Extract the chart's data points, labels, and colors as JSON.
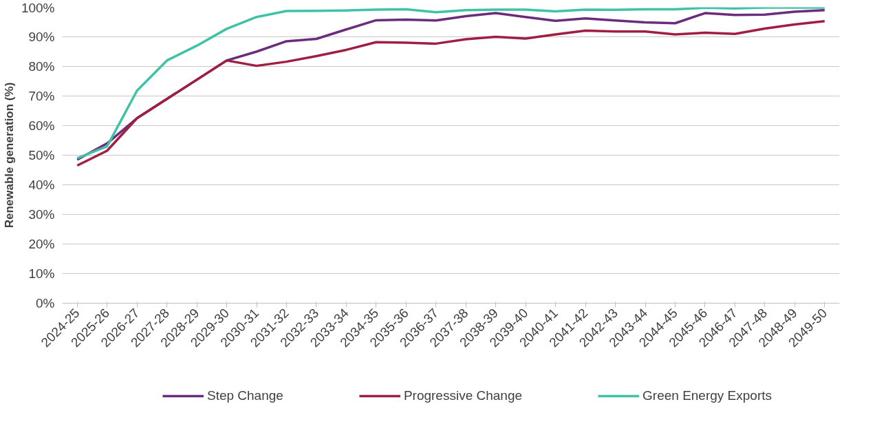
{
  "chart_data": {
    "type": "line",
    "ylabel": "Renewable generation (%)",
    "categories": [
      "2024-25",
      "2025-26",
      "2026-27",
      "2027-28",
      "2028-29",
      "2029-30",
      "2030-31",
      "2031-32",
      "2032-33",
      "2033-34",
      "2034-35",
      "2035-36",
      "2036-37",
      "2037-38",
      "2038-39",
      "2039-40",
      "2040-41",
      "2041-42",
      "2042-43",
      "2043-44",
      "2044-45",
      "2045-46",
      "2046-47",
      "2047-48",
      "2048-49",
      "2049-50"
    ],
    "series": [
      {
        "name": "Step Change",
        "color": "#6b2c7e",
        "values": [
          48.5,
          54,
          62.5,
          69,
          75.5,
          82,
          85,
          88.5,
          89.3,
          92.5,
          95.6,
          95.8,
          95.5,
          97,
          98,
          96.7,
          95.4,
          96.2,
          95.5,
          94.9,
          94.6,
          98,
          97.4,
          97.5,
          98.5,
          99
        ]
      },
      {
        "name": "Progressive Change",
        "color": "#a01e42",
        "values": [
          46.5,
          51.5,
          62.5,
          69,
          75.5,
          82,
          80.2,
          81.6,
          83.5,
          85.6,
          88.2,
          88,
          87.7,
          89.2,
          90,
          89.4,
          90.8,
          92.1,
          91.8,
          91.8,
          90.8,
          91.4,
          91,
          92.8,
          94.2,
          95.3
        ]
      },
      {
        "name": "Green Energy Exports",
        "color": "#3fc2a8",
        "values": [
          49,
          53,
          71.8,
          82,
          87,
          92.7,
          96.7,
          98.7,
          98.8,
          98.9,
          99.2,
          99.3,
          98.3,
          99,
          99.2,
          99.2,
          98.6,
          99.2,
          99.1,
          99.3,
          99.3,
          99.8,
          99.6,
          99.9,
          99.9,
          99.9
        ]
      }
    ],
    "ylim": [
      0,
      100
    ],
    "yticks": [
      {
        "value": 0,
        "label": "0%"
      },
      {
        "value": 10,
        "label": "10%"
      },
      {
        "value": 20,
        "label": "20%"
      },
      {
        "value": 30,
        "label": "30%"
      },
      {
        "value": 40,
        "label": "40%"
      },
      {
        "value": 50,
        "label": "50%"
      },
      {
        "value": 60,
        "label": "60%"
      },
      {
        "value": 70,
        "label": "70%"
      },
      {
        "value": 80,
        "label": "80%"
      },
      {
        "value": 90,
        "label": "90%"
      },
      {
        "value": 100,
        "label": "100%"
      }
    ],
    "grid": "y",
    "legend": "bottom",
    "marker": "none",
    "line_style": "solid"
  }
}
